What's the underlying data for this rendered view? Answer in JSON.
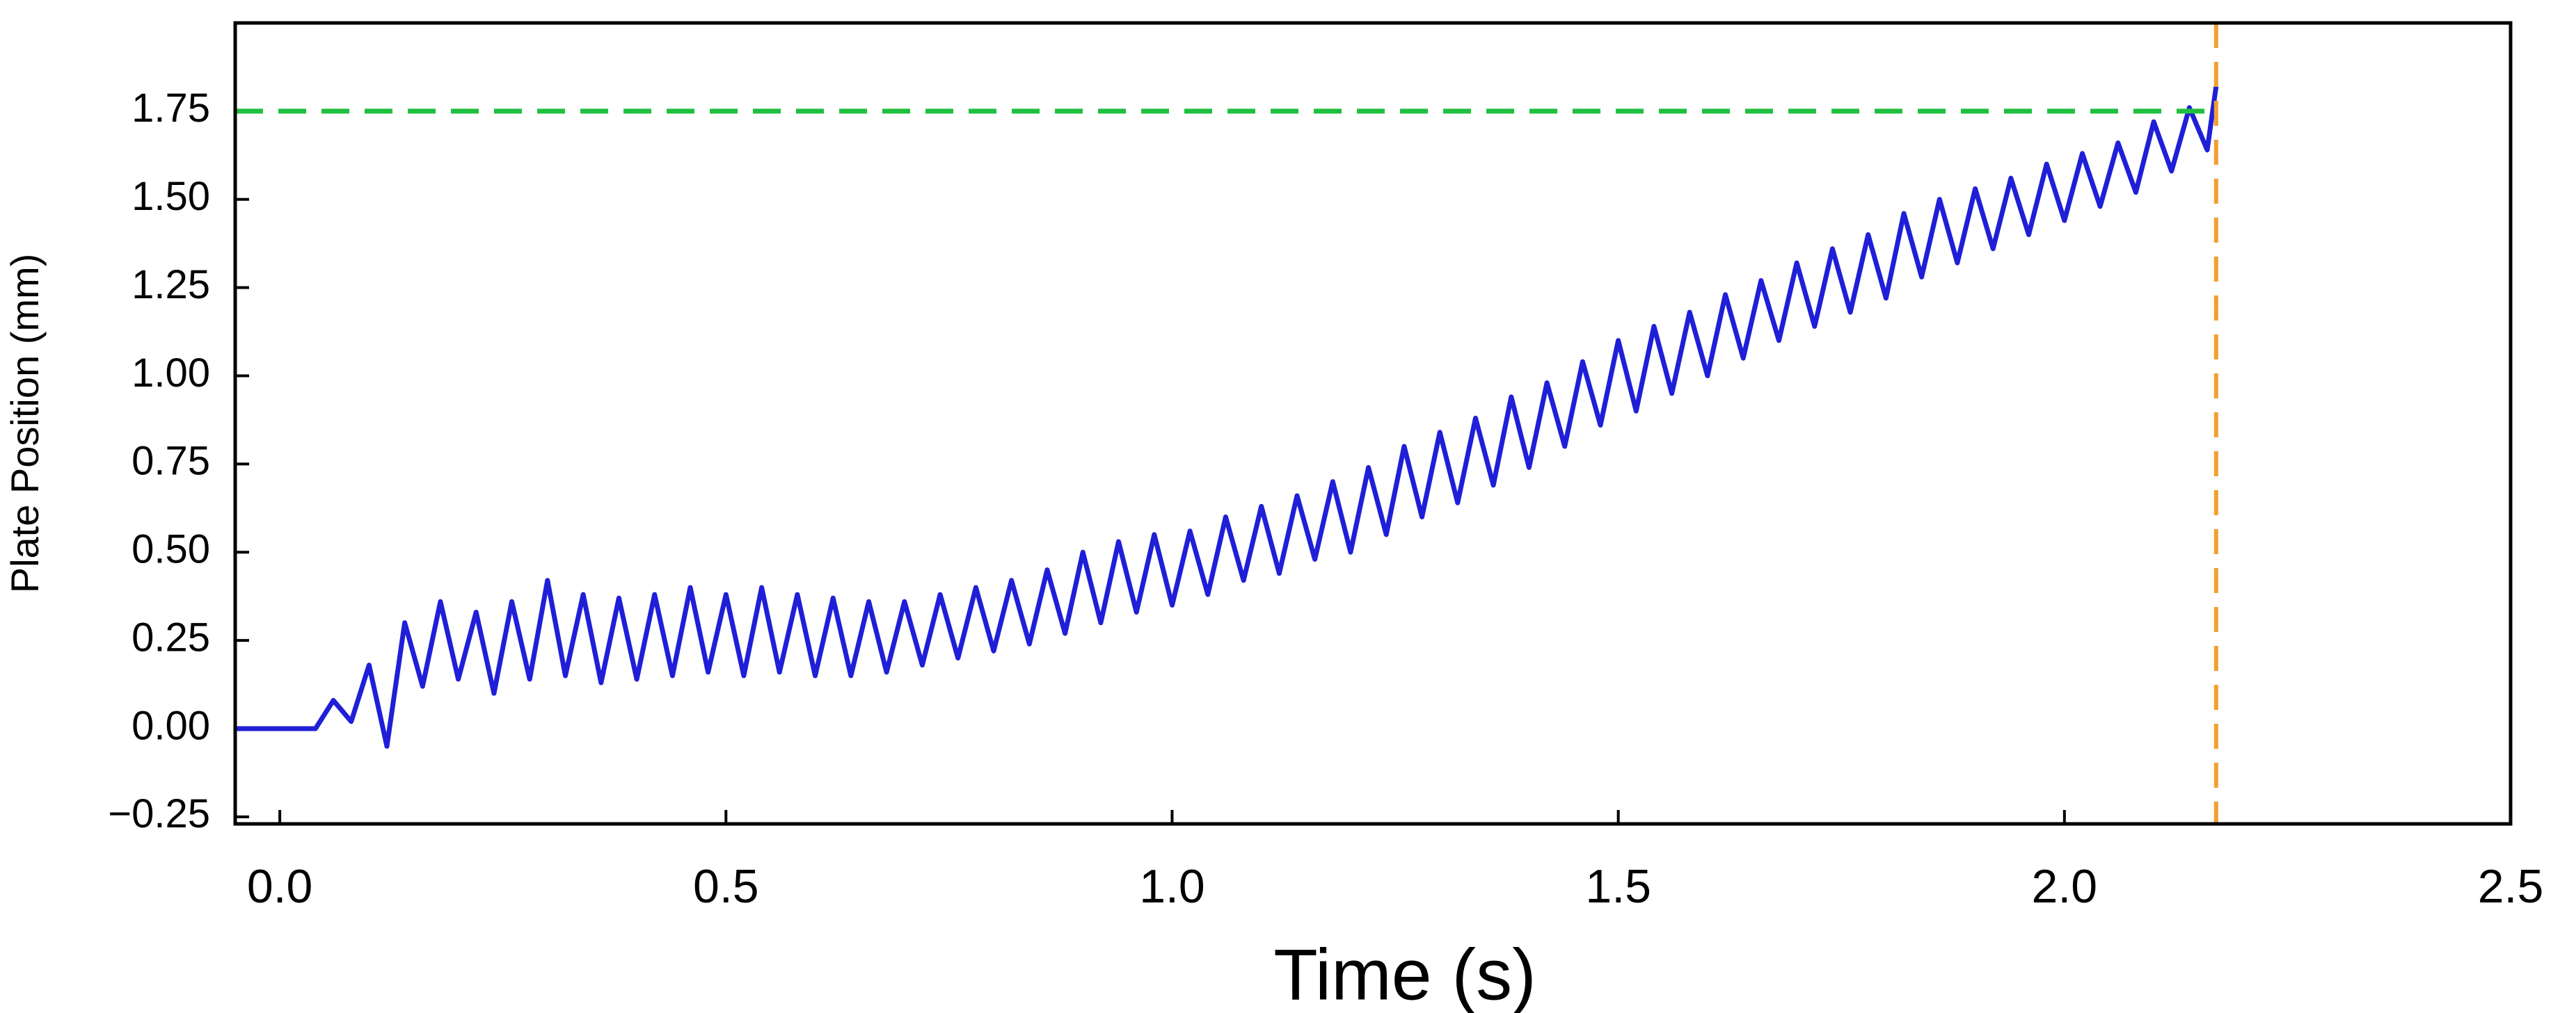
{
  "chart_data": {
    "type": "line",
    "x_label": "Time (s)",
    "y_label": "Plate Position (mm)",
    "xlim": [
      -0.05,
      2.5
    ],
    "ylim": [
      -0.27,
      2.0
    ],
    "xticks": [
      {
        "value": 0,
        "label": "0.0"
      },
      0.5,
      {
        "value": 1,
        "label": "1.0"
      },
      1.5,
      {
        "value": 2,
        "label": "2.0"
      },
      2.5
    ],
    "yticks": [
      {
        "value": -0.25,
        "label": "−0.25"
      },
      {
        "value": 0,
        "label": "0.00"
      },
      {
        "value": 0.25,
        "label": "0.25"
      },
      {
        "value": 0.5,
        "label": "0.50"
      },
      {
        "value": 0.75,
        "label": "0.75"
      },
      {
        "value": 1,
        "label": "1.00"
      },
      {
        "value": 1.25,
        "label": "1.25"
      },
      {
        "value": 1.5,
        "label": "1.50"
      },
      {
        "value": 1.75,
        "label": "1.75"
      }
    ],
    "grid": false,
    "hlines": [
      {
        "value": 1.75,
        "color": "#1fbf3f"
      }
    ],
    "vlines": [
      {
        "value": 2.17,
        "color": "#f0a030"
      }
    ],
    "x": [
      -0.05,
      0.0,
      0.04,
      0.06,
      0.08,
      0.1,
      0.12,
      0.14,
      0.16,
      0.18,
      0.2,
      0.22,
      0.24,
      0.26,
      0.28,
      0.3,
      0.32,
      0.34,
      0.36,
      0.38,
      0.4,
      0.42,
      0.44,
      0.46,
      0.48,
      0.5,
      0.52,
      0.54,
      0.56,
      0.58,
      0.6,
      0.62,
      0.64,
      0.66,
      0.68,
      0.7,
      0.72,
      0.74,
      0.76,
      0.78,
      0.8,
      0.82,
      0.84,
      0.86,
      0.88,
      0.9,
      0.92,
      0.94,
      0.96,
      0.98,
      1.0,
      1.02,
      1.04,
      1.06,
      1.08,
      1.1,
      1.12,
      1.14,
      1.16,
      1.18,
      1.2,
      1.22,
      1.24,
      1.26,
      1.28,
      1.3,
      1.32,
      1.34,
      1.36,
      1.38,
      1.4,
      1.42,
      1.44,
      1.46,
      1.48,
      1.5,
      1.52,
      1.54,
      1.56,
      1.58,
      1.6,
      1.62,
      1.64,
      1.66,
      1.68,
      1.7,
      1.72,
      1.74,
      1.76,
      1.78,
      1.8,
      1.82,
      1.84,
      1.86,
      1.88,
      1.9,
      1.92,
      1.94,
      1.96,
      1.98,
      2.0,
      2.02,
      2.04,
      2.06,
      2.08,
      2.1,
      2.12,
      2.14,
      2.16,
      2.17
    ],
    "series": [
      {
        "name": "Plate Position",
        "color": "#1f1fd8",
        "values": [
          0,
          0,
          0,
          0.08,
          0.02,
          0.18,
          -0.05,
          0.3,
          0.12,
          0.36,
          0.14,
          0.33,
          0.1,
          0.36,
          0.14,
          0.42,
          0.15,
          0.38,
          0.13,
          0.37,
          0.14,
          0.38,
          0.15,
          0.4,
          0.16,
          0.38,
          0.15,
          0.4,
          0.16,
          0.38,
          0.15,
          0.37,
          0.15,
          0.36,
          0.16,
          0.36,
          0.18,
          0.38,
          0.2,
          0.4,
          0.22,
          0.42,
          0.24,
          0.45,
          0.27,
          0.5,
          0.3,
          0.53,
          0.33,
          0.55,
          0.35,
          0.56,
          0.38,
          0.6,
          0.42,
          0.63,
          0.44,
          0.66,
          0.48,
          0.7,
          0.5,
          0.74,
          0.55,
          0.8,
          0.6,
          0.84,
          0.64,
          0.88,
          0.69,
          0.94,
          0.74,
          0.98,
          0.8,
          1.04,
          0.86,
          1.1,
          0.9,
          1.14,
          0.95,
          1.18,
          1.0,
          1.23,
          1.05,
          1.27,
          1.1,
          1.32,
          1.14,
          1.36,
          1.18,
          1.4,
          1.22,
          1.46,
          1.28,
          1.5,
          1.32,
          1.53,
          1.36,
          1.56,
          1.4,
          1.6,
          1.44,
          1.63,
          1.48,
          1.66,
          1.52,
          1.72,
          1.58,
          1.76,
          1.64,
          1.82
        ]
      }
    ]
  }
}
